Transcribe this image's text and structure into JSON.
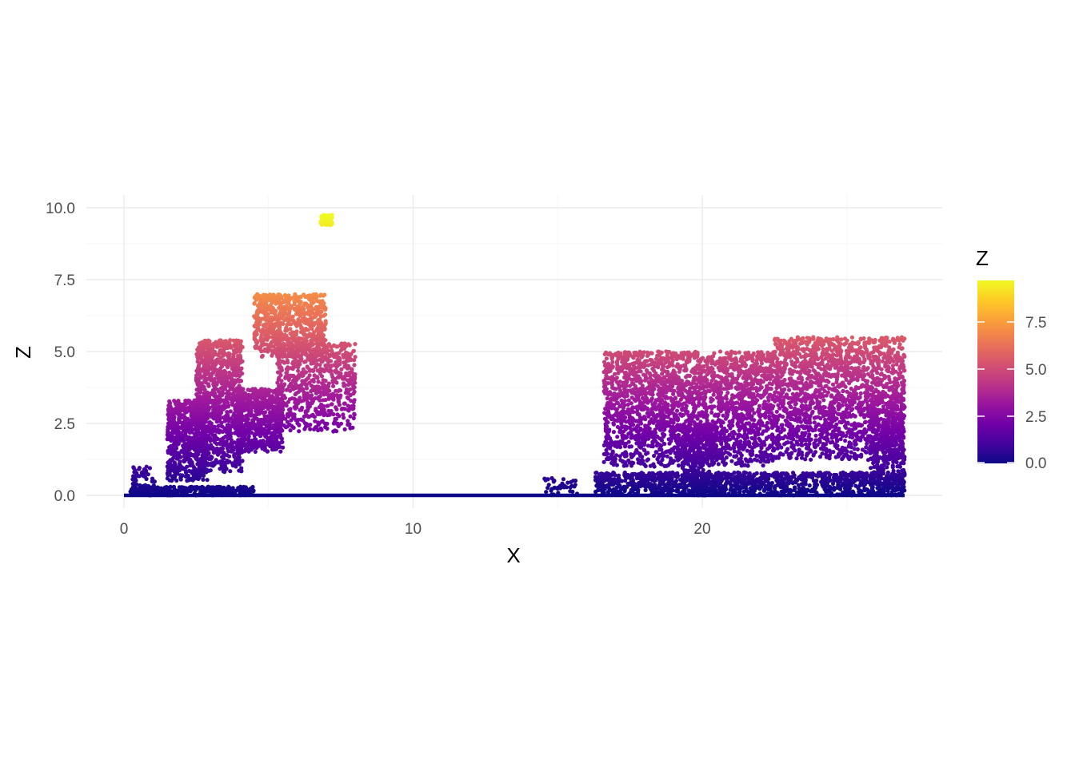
{
  "chart_data": {
    "type": "scatter",
    "title": "",
    "xlabel": "X",
    "ylabel": "Z",
    "xlim": [
      0,
      27
    ],
    "ylim": [
      0,
      9.8
    ],
    "x_ticks": [
      0,
      10,
      20
    ],
    "x_tick_labels": [
      "0",
      "10",
      "20"
    ],
    "y_ticks": [
      0,
      2.5,
      5,
      7.5,
      10
    ],
    "y_tick_labels": [
      "0.0",
      "2.5",
      "5.0",
      "7.5",
      "10.0"
    ],
    "grid": true,
    "color_scale": {
      "name": "plasma",
      "title": "Z",
      "range": [
        0,
        9.7
      ],
      "ticks": [
        0,
        2.5,
        5,
        7.5
      ],
      "tick_labels": [
        "0.0",
        "2.5",
        "5.0",
        "7.5"
      ],
      "colors": [
        "#0d0887",
        "#46039f",
        "#7201a8",
        "#9c179e",
        "#bd3786",
        "#d8576b",
        "#ed7953",
        "#fb9f3a",
        "#fdca26",
        "#f0f921"
      ]
    },
    "legend_position": "right",
    "clusters": [
      {
        "name": "ground",
        "shape": "line",
        "x": [
          0,
          27
        ],
        "z": [
          0,
          0
        ]
      },
      {
        "name": "left-canopy-low",
        "x": [
          0.2,
          4.5
        ],
        "z": [
          0,
          0.3
        ],
        "points": 350
      },
      {
        "name": "left-small-base",
        "x": [
          0.3,
          1.1
        ],
        "z": [
          0,
          1.05
        ],
        "points": 60
      },
      {
        "name": "left-canopy-1",
        "x": [
          1.5,
          2.9
        ],
        "z": [
          0.5,
          3.3
        ],
        "points": 700
      },
      {
        "name": "left-canopy-2",
        "x": [
          2.5,
          4.1
        ],
        "z": [
          0.8,
          5.4
        ],
        "points": 1000
      },
      {
        "name": "left-canopy-3",
        "x": [
          3.9,
          5.5
        ],
        "z": [
          1.5,
          3.7
        ],
        "points": 600
      },
      {
        "name": "left-canopy-top",
        "x": [
          4.5,
          7.0
        ],
        "z": [
          4.8,
          7.0
        ],
        "points": 700
      },
      {
        "name": "left-canopy-4",
        "x": [
          5.3,
          8.0
        ],
        "z": [
          2.2,
          5.3
        ],
        "points": 700
      },
      {
        "name": "outlier-top",
        "x": [
          6.8,
          7.2
        ],
        "z": [
          9.4,
          9.75
        ],
        "points": 40
      },
      {
        "name": "mid-low",
        "x": [
          14.5,
          15.7
        ],
        "z": [
          0,
          0.6
        ],
        "points": 40
      },
      {
        "name": "right-canopy-low",
        "x": [
          16.3,
          27.0
        ],
        "z": [
          0,
          0.8
        ],
        "points": 1200
      },
      {
        "name": "right-canopy-1",
        "x": [
          16.6,
          22.5
        ],
        "z": [
          1.0,
          5.0
        ],
        "points": 2500
      },
      {
        "name": "right-canopy-2",
        "x": [
          22.5,
          27.0
        ],
        "z": [
          1.2,
          5.5
        ],
        "points": 1800
      },
      {
        "name": "right-trunk-1",
        "x": [
          19.3,
          20.5
        ],
        "z": [
          0,
          2.5
        ],
        "points": 300
      },
      {
        "name": "right-trunk-2",
        "x": [
          25.8,
          27.0
        ],
        "z": [
          0,
          3.5
        ],
        "points": 400
      }
    ]
  }
}
